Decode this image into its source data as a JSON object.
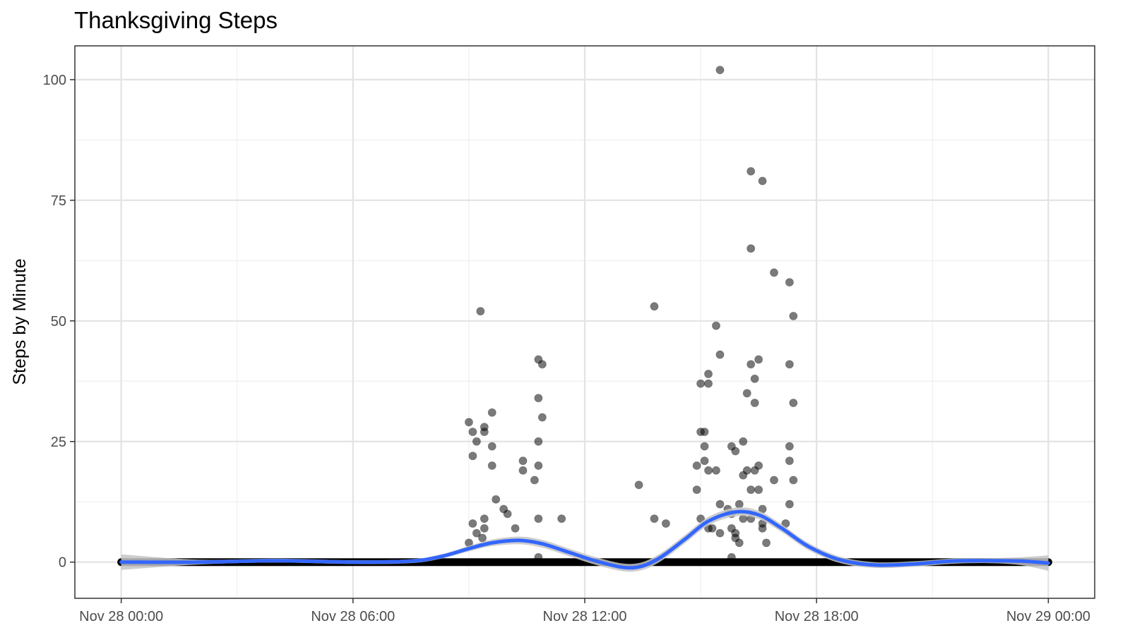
{
  "chart_data": {
    "type": "scatter",
    "title": "Thanksgiving Steps",
    "xlabel": "",
    "ylabel": "Steps by Minute",
    "x_ticks": [
      "Nov 28 00:00",
      "Nov 28 06:00",
      "Nov 28 12:00",
      "Nov 28 18:00",
      "Nov 29 00:00"
    ],
    "y_ticks": [
      "0",
      "25",
      "50",
      "75",
      "100"
    ],
    "xlim_hours": [
      -1.2,
      25.2
    ],
    "ylim": [
      -7.5,
      107
    ],
    "grid": true,
    "point_color": "#000000",
    "smooth_color": "#3366ff",
    "band_color": "#c4c4c4",
    "zero_runs_hours": [
      [
        0,
        24
      ]
    ],
    "points": [
      {
        "x": 9.0,
        "y": 29
      },
      {
        "x": 9.1,
        "y": 27
      },
      {
        "x": 9.2,
        "y": 25
      },
      {
        "x": 9.1,
        "y": 22
      },
      {
        "x": 9.3,
        "y": 52
      },
      {
        "x": 9.4,
        "y": 28
      },
      {
        "x": 9.4,
        "y": 27
      },
      {
        "x": 9.6,
        "y": 31
      },
      {
        "x": 9.6,
        "y": 24
      },
      {
        "x": 9.6,
        "y": 20
      },
      {
        "x": 9.7,
        "y": 13
      },
      {
        "x": 9.4,
        "y": 9
      },
      {
        "x": 9.1,
        "y": 8
      },
      {
        "x": 9.2,
        "y": 6
      },
      {
        "x": 9.4,
        "y": 7
      },
      {
        "x": 9.35,
        "y": 5
      },
      {
        "x": 9.0,
        "y": 4
      },
      {
        "x": 9.9,
        "y": 11
      },
      {
        "x": 10.0,
        "y": 10
      },
      {
        "x": 10.4,
        "y": 21
      },
      {
        "x": 10.4,
        "y": 19
      },
      {
        "x": 10.2,
        "y": 7
      },
      {
        "x": 10.8,
        "y": 42
      },
      {
        "x": 10.9,
        "y": 41
      },
      {
        "x": 10.8,
        "y": 34
      },
      {
        "x": 10.9,
        "y": 30
      },
      {
        "x": 10.8,
        "y": 25
      },
      {
        "x": 10.8,
        "y": 20
      },
      {
        "x": 10.7,
        "y": 17
      },
      {
        "x": 10.8,
        "y": 9
      },
      {
        "x": 11.4,
        "y": 9
      },
      {
        "x": 10.8,
        "y": 1
      },
      {
        "x": 13.4,
        "y": 16
      },
      {
        "x": 13.8,
        "y": 53
      },
      {
        "x": 13.8,
        "y": 9
      },
      {
        "x": 14.1,
        "y": 8
      },
      {
        "x": 15.5,
        "y": 102
      },
      {
        "x": 16.3,
        "y": 81
      },
      {
        "x": 16.6,
        "y": 79
      },
      {
        "x": 16.3,
        "y": 65
      },
      {
        "x": 16.9,
        "y": 60
      },
      {
        "x": 17.3,
        "y": 58
      },
      {
        "x": 17.4,
        "y": 51
      },
      {
        "x": 15.4,
        "y": 49
      },
      {
        "x": 15.5,
        "y": 43
      },
      {
        "x": 16.3,
        "y": 41
      },
      {
        "x": 16.5,
        "y": 42
      },
      {
        "x": 17.3,
        "y": 41
      },
      {
        "x": 15.2,
        "y": 39
      },
      {
        "x": 15.2,
        "y": 37
      },
      {
        "x": 15.0,
        "y": 37
      },
      {
        "x": 16.4,
        "y": 38
      },
      {
        "x": 16.2,
        "y": 35
      },
      {
        "x": 16.4,
        "y": 33
      },
      {
        "x": 17.4,
        "y": 33
      },
      {
        "x": 15.1,
        "y": 27
      },
      {
        "x": 15.0,
        "y": 27
      },
      {
        "x": 16.1,
        "y": 25
      },
      {
        "x": 15.8,
        "y": 24
      },
      {
        "x": 15.9,
        "y": 23
      },
      {
        "x": 15.1,
        "y": 24
      },
      {
        "x": 17.3,
        "y": 24
      },
      {
        "x": 15.1,
        "y": 21
      },
      {
        "x": 14.9,
        "y": 20
      },
      {
        "x": 17.3,
        "y": 21
      },
      {
        "x": 16.5,
        "y": 20
      },
      {
        "x": 15.2,
        "y": 19
      },
      {
        "x": 15.4,
        "y": 19
      },
      {
        "x": 16.2,
        "y": 19
      },
      {
        "x": 16.1,
        "y": 18
      },
      {
        "x": 16.4,
        "y": 19
      },
      {
        "x": 16.9,
        "y": 17
      },
      {
        "x": 17.4,
        "y": 17
      },
      {
        "x": 14.9,
        "y": 15
      },
      {
        "x": 16.3,
        "y": 15
      },
      {
        "x": 16.5,
        "y": 15
      },
      {
        "x": 15.5,
        "y": 12
      },
      {
        "x": 16.0,
        "y": 12
      },
      {
        "x": 17.3,
        "y": 12
      },
      {
        "x": 15.7,
        "y": 11
      },
      {
        "x": 16.6,
        "y": 11
      },
      {
        "x": 15.0,
        "y": 9
      },
      {
        "x": 15.8,
        "y": 10
      },
      {
        "x": 16.1,
        "y": 9
      },
      {
        "x": 16.3,
        "y": 9
      },
      {
        "x": 17.2,
        "y": 8
      },
      {
        "x": 16.6,
        "y": 8
      },
      {
        "x": 15.8,
        "y": 7
      },
      {
        "x": 15.2,
        "y": 7
      },
      {
        "x": 15.3,
        "y": 7
      },
      {
        "x": 16.6,
        "y": 7
      },
      {
        "x": 15.5,
        "y": 6
      },
      {
        "x": 15.9,
        "y": 6
      },
      {
        "x": 15.9,
        "y": 5
      },
      {
        "x": 16.0,
        "y": 4
      },
      {
        "x": 16.7,
        "y": 4
      },
      {
        "x": 15.8,
        "y": 1
      }
    ],
    "smooth_line": [
      {
        "x": 0,
        "y": 0
      },
      {
        "x": 2,
        "y": 0
      },
      {
        "x": 4,
        "y": 0.3
      },
      {
        "x": 6,
        "y": 0
      },
      {
        "x": 7.5,
        "y": 0.2
      },
      {
        "x": 8.3,
        "y": 1.2
      },
      {
        "x": 9.0,
        "y": 2.8
      },
      {
        "x": 9.6,
        "y": 4.0
      },
      {
        "x": 10.3,
        "y": 4.5
      },
      {
        "x": 10.9,
        "y": 3.8
      },
      {
        "x": 11.6,
        "y": 2.0
      },
      {
        "x": 12.3,
        "y": 0.2
      },
      {
        "x": 13.0,
        "y": -1.1
      },
      {
        "x": 13.5,
        "y": -0.8
      },
      {
        "x": 14.0,
        "y": 1.2
      },
      {
        "x": 14.6,
        "y": 4.8
      },
      {
        "x": 15.2,
        "y": 8.5
      },
      {
        "x": 15.9,
        "y": 10.4
      },
      {
        "x": 16.5,
        "y": 9.8
      },
      {
        "x": 17.1,
        "y": 7.0
      },
      {
        "x": 17.8,
        "y": 3.2
      },
      {
        "x": 18.6,
        "y": 0.5
      },
      {
        "x": 19.5,
        "y": -0.6
      },
      {
        "x": 20.5,
        "y": -0.4
      },
      {
        "x": 21.5,
        "y": 0.2
      },
      {
        "x": 22.5,
        "y": 0.3
      },
      {
        "x": 23.3,
        "y": 0.2
      },
      {
        "x": 24,
        "y": -0.2
      }
    ],
    "smooth_band_halfwidth": [
      {
        "x": 0,
        "y": 1.6
      },
      {
        "x": 1,
        "y": 0.6
      },
      {
        "x": 3,
        "y": 0.4
      },
      {
        "x": 8,
        "y": 0.4
      },
      {
        "x": 10.3,
        "y": 0.8
      },
      {
        "x": 13.0,
        "y": 0.8
      },
      {
        "x": 15.9,
        "y": 0.9
      },
      {
        "x": 19.5,
        "y": 0.6
      },
      {
        "x": 23,
        "y": 0.5
      },
      {
        "x": 24,
        "y": 1.6
      }
    ]
  }
}
